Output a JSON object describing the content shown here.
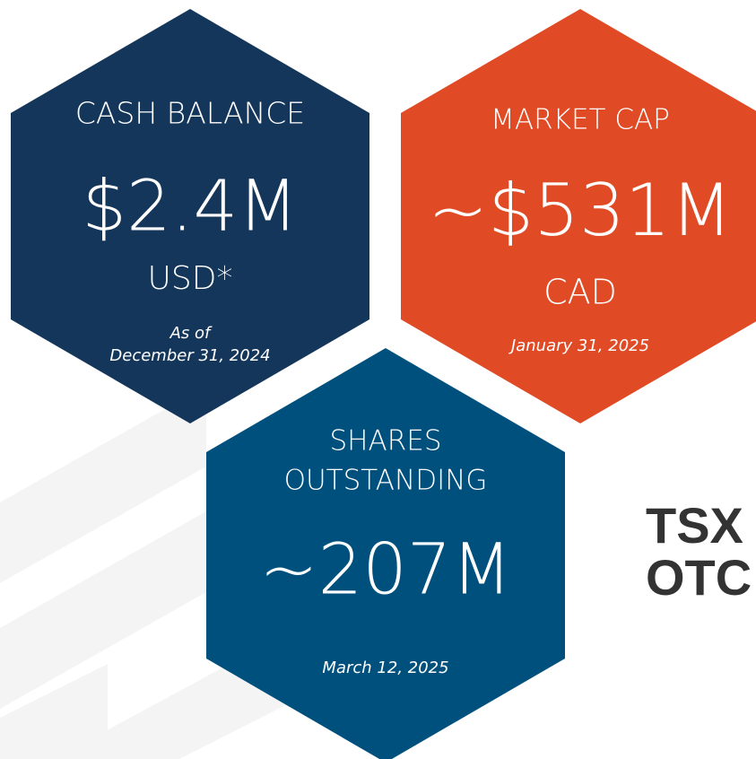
{
  "cards": [
    {
      "label": [
        "CASH BALANCE"
      ],
      "value": "$2.4M",
      "unit": "USD*",
      "note": [
        "As of",
        "December 31, 2024"
      ]
    },
    {
      "label": [
        "MARKET CAP"
      ],
      "value": "~$531M",
      "unit": "CAD",
      "note": [
        "January 31, 2025"
      ]
    },
    {
      "label": [
        "SHARES",
        "OUTSTANDING"
      ],
      "value": "~207M",
      "note": [
        "March 12, 2025"
      ]
    }
  ],
  "tickers": [
    "TSX",
    "OTC"
  ]
}
